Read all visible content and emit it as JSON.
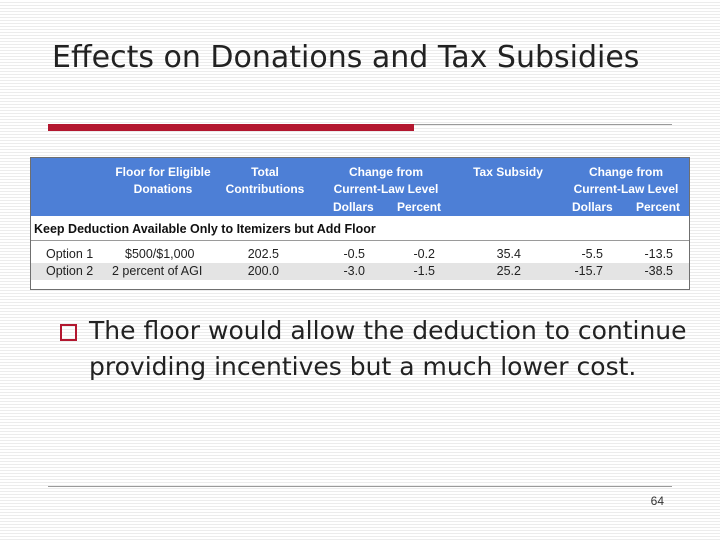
{
  "slide": {
    "title": "Effects on Donations and Tax Subsidies",
    "bullet": "The floor would allow the deduction to continue providing incentives but a much lower cost.",
    "page_number": "64"
  },
  "table": {
    "headers": {
      "floor": "Floor for Eligible\nDonations",
      "total": "Total\nContributions",
      "change1": "Change from\nCurrent-Law Level",
      "dollars1": "Dollars",
      "percent1": "Percent",
      "subsidy": "Tax Subsidy",
      "change2": "Change from\nCurrent-Law Level",
      "dollars2": "Dollars",
      "percent2": "Percent"
    },
    "section": "Keep Deduction Available Only to Itemizers but Add Floor",
    "rows": [
      {
        "option": "Option 1",
        "floor": "$500/$1,000",
        "total": "202.5",
        "dollars1": "-0.5",
        "percent1": "-0.2",
        "subsidy": "35.4",
        "dollars2": "-5.5",
        "percent2": "-13.5"
      },
      {
        "option": "Option 2",
        "floor": "2 percent of AGI",
        "total": "200.0",
        "dollars1": "-3.0",
        "percent1": "-1.5",
        "subsidy": "25.2",
        "dollars2": "-15.7",
        "percent2": "-38.5"
      }
    ]
  },
  "colors": {
    "accent": "#b3172f",
    "header_blue": "#4d7fd6"
  }
}
